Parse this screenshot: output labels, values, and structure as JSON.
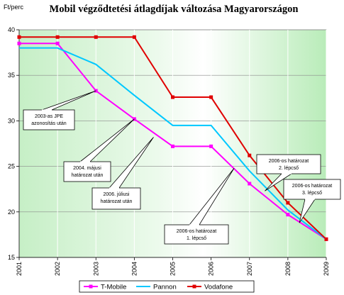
{
  "chart_data": {
    "type": "line",
    "title": "Mobil végződtetési átlagdíjak változása Magyarországon",
    "ylabel": "Ft/perc",
    "xlabel": "",
    "ylim": [
      15,
      40
    ],
    "y_ticks": [
      "15",
      "20",
      "25",
      "30",
      "35",
      "40"
    ],
    "x": [
      "2001",
      "2002",
      "2003",
      "2004",
      "2005",
      "2006",
      "2007",
      "2008",
      "2009"
    ],
    "grid": "horizontal",
    "legend_position": "bottom",
    "series": [
      {
        "name": "T-Mobile",
        "color": "#ff00ff",
        "marker": "square",
        "values": [
          38.5,
          38.5,
          33.3,
          30.2,
          27.2,
          27.2,
          23.1,
          19.7,
          17.0
        ]
      },
      {
        "name": "Pannon",
        "color": "#00c8ff",
        "marker": "none",
        "values": [
          38.0,
          38.0,
          36.2,
          32.8,
          29.5,
          29.5,
          24.5,
          20.2,
          17.0
        ]
      },
      {
        "name": "Vodafone",
        "color": "#e00000",
        "marker": "square",
        "values": [
          39.2,
          39.2,
          39.2,
          39.2,
          32.6,
          32.6,
          26.2,
          21.0,
          17.0
        ]
      }
    ],
    "annotations": [
      {
        "lines": [
          "2003-as JPE",
          "azonosítás után"
        ],
        "at": [
          2003,
          33.3
        ]
      },
      {
        "lines": [
          "2004. májusi",
          "határozat után"
        ],
        "at": [
          2004,
          30.2
        ]
      },
      {
        "lines": [
          "2006. júliusi",
          "határozat után"
        ],
        "at": [
          2004.5,
          28.2
        ]
      },
      {
        "lines": [
          "2006-os határozat",
          "1. lépcső"
        ],
        "at": [
          2006.6,
          24.8
        ]
      },
      {
        "lines": [
          "2006-os határozat",
          "2. lépcső"
        ],
        "at": [
          2007.4,
          22.3
        ]
      },
      {
        "lines": [
          "2006-os határozat",
          "3. lépcső"
        ],
        "at": [
          2008.3,
          18.8
        ]
      }
    ]
  }
}
